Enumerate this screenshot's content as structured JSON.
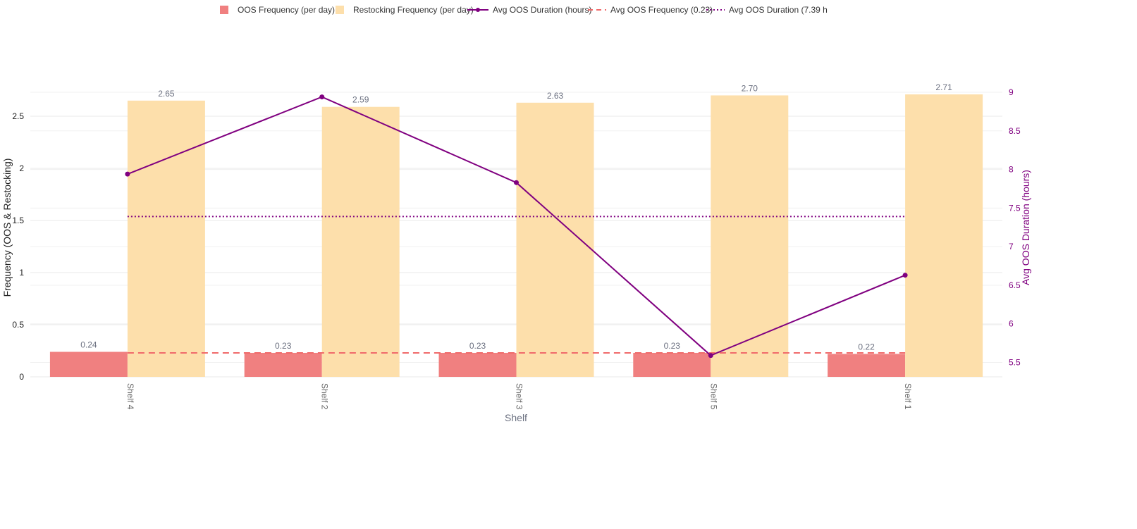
{
  "colors": {
    "oos_bar": "#F08080",
    "restock_bar": "#FDDFAB",
    "duration_line": "#800080",
    "avg_oos_line": "#F06A6A",
    "avg_duration_line": "#800080",
    "grid": "#E8E8E8"
  },
  "legend": [
    {
      "label": "OOS Frequency (per day)",
      "kind": "bar",
      "color_key": "oos_bar"
    },
    {
      "label": "Restocking Frequency (per day)",
      "kind": "bar",
      "color_key": "restock_bar"
    },
    {
      "label": "Avg OOS Duration (hours)",
      "kind": "line-marker",
      "color_key": "duration_line"
    },
    {
      "label": "Avg OOS Frequency (0.23)",
      "kind": "dash",
      "color_key": "avg_oos_line"
    },
    {
      "label": "Avg OOS Duration (7.39 h",
      "kind": "dot",
      "color_key": "avg_duration_line"
    }
  ],
  "chart_data": {
    "type": "bar",
    "title": "",
    "xlabel": "Shelf",
    "ylabel": "Frequency (OOS & Restocking)",
    "y2label": "Avg OOS Duration (hours)",
    "categories": [
      "Shelf 4",
      "Shelf 2",
      "Shelf 3",
      "Shelf 5",
      "Shelf 1"
    ],
    "ylim": [
      0,
      2.73
    ],
    "y2lim": [
      5.45,
      9.0
    ],
    "yticks": [
      0,
      0.5,
      1,
      1.5,
      2,
      2.5
    ],
    "y2ticks": [
      5.5,
      6,
      6.5,
      7,
      7.5,
      8,
      8.5,
      9
    ],
    "series": [
      {
        "name": "OOS Frequency (per day)",
        "type": "bar",
        "axis": "y",
        "values": [
          0.24,
          0.23,
          0.23,
          0.23,
          0.22
        ],
        "labels": [
          "0.24",
          "0.23",
          "0.23",
          "0.23",
          "0.22"
        ]
      },
      {
        "name": "Restocking Frequency (per day)",
        "type": "bar",
        "axis": "y",
        "values": [
          2.65,
          2.59,
          2.63,
          2.7,
          2.71
        ],
        "labels": [
          "2.65",
          "2.59",
          "2.63",
          "2.70",
          "2.71"
        ]
      },
      {
        "name": "Avg OOS Duration (hours)",
        "type": "line",
        "axis": "y2",
        "values": [
          7.94,
          8.94,
          7.83,
          5.59,
          6.63
        ]
      }
    ],
    "reference_lines": [
      {
        "name": "Avg OOS Frequency (0.23)",
        "axis": "y",
        "value": 0.23,
        "style": "dash"
      },
      {
        "name": "Avg OOS Duration (7.39 h",
        "axis": "y2",
        "value": 7.39,
        "style": "dot"
      }
    ],
    "grid": true,
    "legend_position": "top"
  }
}
